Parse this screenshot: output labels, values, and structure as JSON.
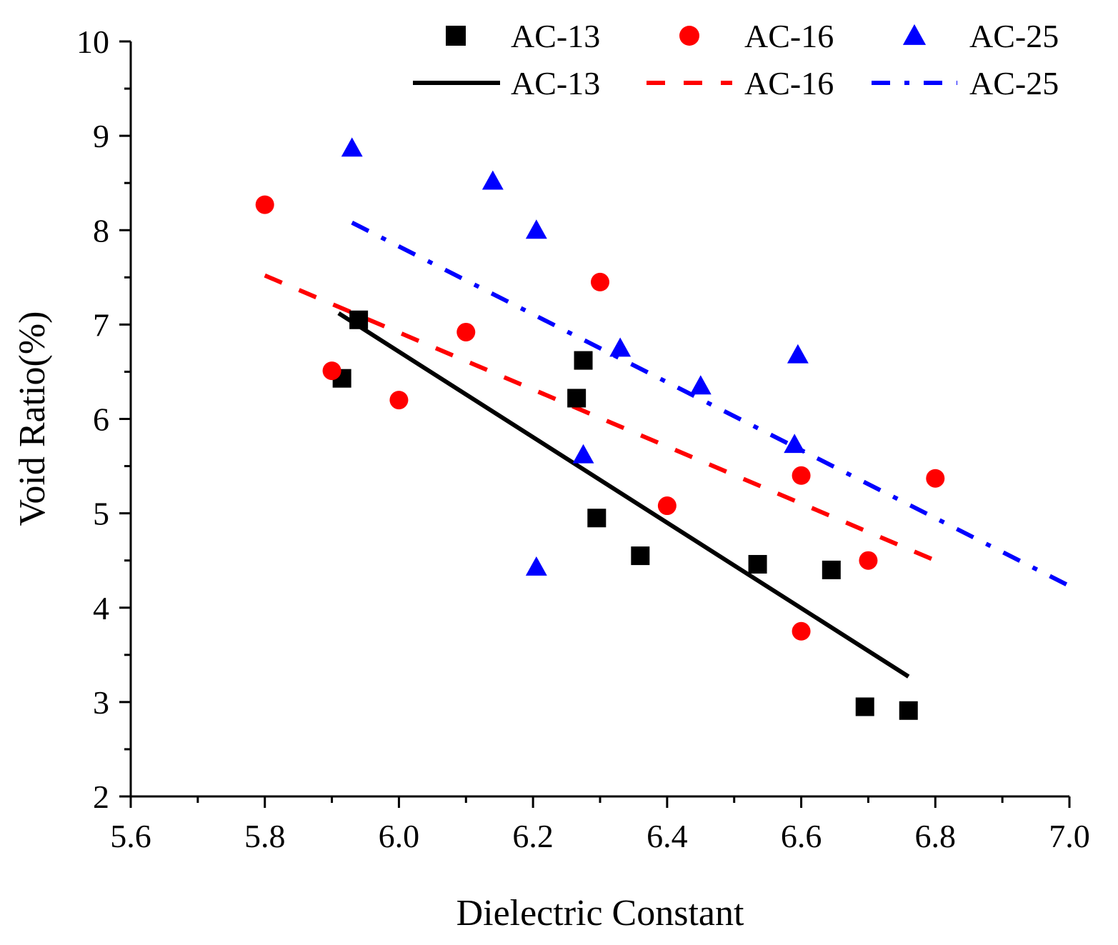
{
  "chart_data": {
    "type": "scatter",
    "xlabel": "Dielectric Constant",
    "ylabel": "Void Ratio(%)",
    "xlim": [
      5.6,
      7.0
    ],
    "ylim": [
      2,
      10
    ],
    "xticks": [
      "5.6",
      "5.8",
      "6.0",
      "6.2",
      "6.4",
      "6.6",
      "6.8",
      "7.0"
    ],
    "xtick_values": [
      5.6,
      5.8,
      6.0,
      6.2,
      6.4,
      6.6,
      6.8,
      7.0
    ],
    "yticks": [
      "2",
      "3",
      "4",
      "5",
      "6",
      "7",
      "8",
      "9",
      "10"
    ],
    "ytick_values": [
      2,
      3,
      4,
      5,
      6,
      7,
      8,
      9,
      10
    ],
    "legend_position": "top-right",
    "series": [
      {
        "name": "AC-13",
        "marker": "square",
        "color": "#000000",
        "points": [
          [
            5.915,
            6.43
          ],
          [
            5.94,
            7.05
          ],
          [
            6.265,
            6.22
          ],
          [
            6.275,
            6.62
          ],
          [
            6.295,
            4.95
          ],
          [
            6.36,
            4.55
          ],
          [
            6.535,
            4.46
          ],
          [
            6.645,
            4.4
          ],
          [
            6.695,
            2.95
          ],
          [
            6.76,
            2.91
          ]
        ]
      },
      {
        "name": "AC-16",
        "marker": "circle",
        "color": "#ff0000",
        "points": [
          [
            5.8,
            8.27
          ],
          [
            5.9,
            6.51
          ],
          [
            6.0,
            6.2
          ],
          [
            6.1,
            6.92
          ],
          [
            6.3,
            7.45
          ],
          [
            6.4,
            5.08
          ],
          [
            6.6,
            5.4
          ],
          [
            6.6,
            3.75
          ],
          [
            6.7,
            4.5
          ],
          [
            6.8,
            5.37
          ]
        ]
      },
      {
        "name": "AC-25",
        "marker": "triangle",
        "color": "#0000ff",
        "points": [
          [
            5.93,
            8.87
          ],
          [
            6.14,
            8.52
          ],
          [
            6.205,
            8.0
          ],
          [
            6.205,
            4.43
          ],
          [
            6.275,
            5.62
          ],
          [
            6.33,
            6.75
          ],
          [
            6.45,
            6.35
          ],
          [
            6.59,
            5.73
          ],
          [
            6.595,
            6.68
          ]
        ]
      }
    ],
    "fit_lines": [
      {
        "name": "AC-13",
        "style": "solid",
        "color": "#000000",
        "x": [
          5.91,
          6.76
        ],
        "y": [
          7.12,
          3.27
        ]
      },
      {
        "name": "AC-16",
        "style": "dash",
        "color": "#ff0000",
        "x": [
          5.8,
          6.8
        ],
        "y": [
          7.52,
          4.5
        ]
      },
      {
        "name": "AC-25",
        "style": "dashdot",
        "color": "#0000ff",
        "x": [
          5.93,
          7.0
        ],
        "y": [
          8.08,
          4.23
        ]
      }
    ]
  }
}
